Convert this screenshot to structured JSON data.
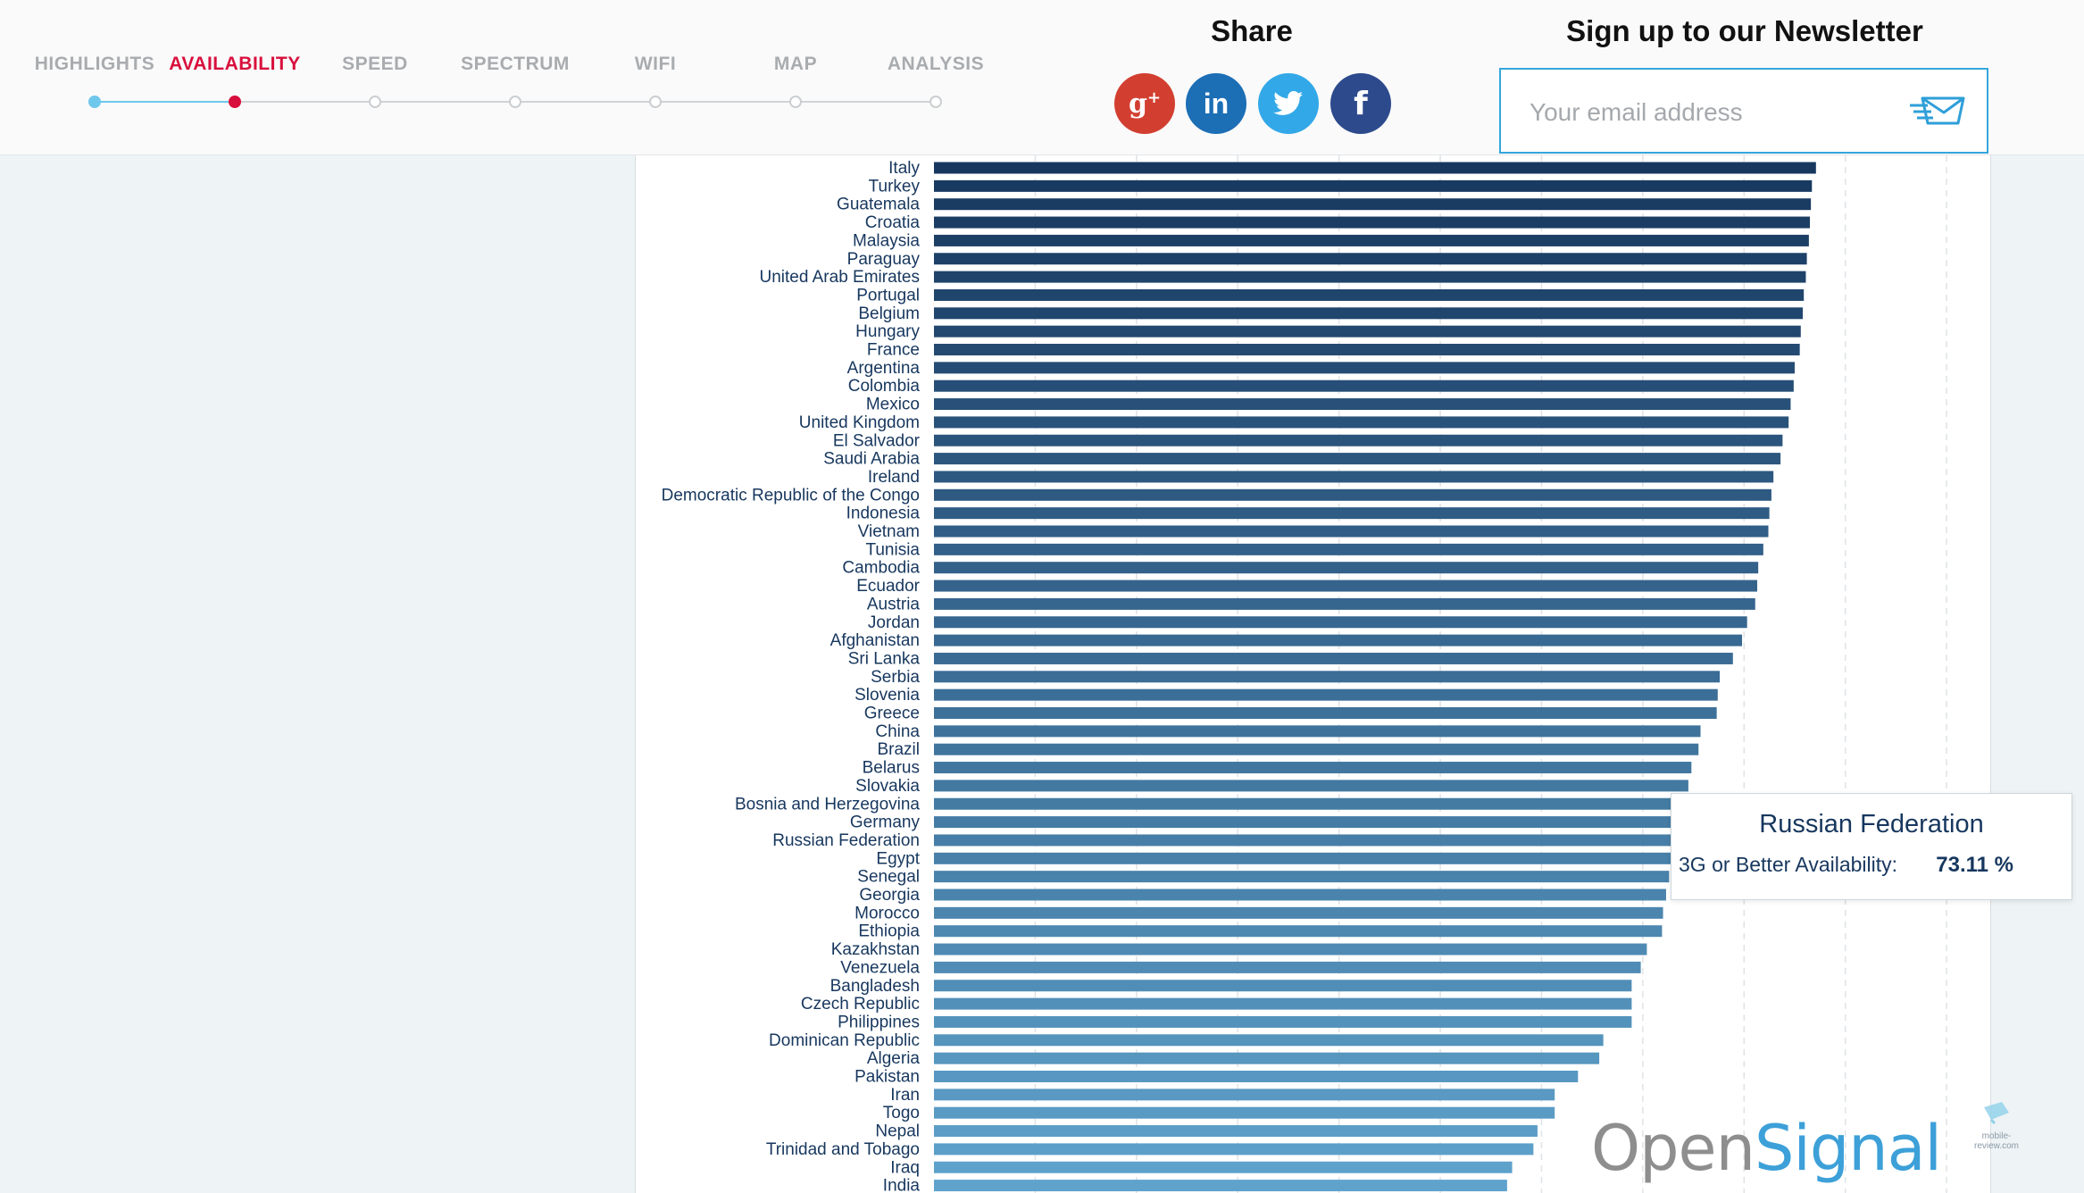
{
  "nav": {
    "items": [
      {
        "label": "HIGHLIGHTS",
        "state": "done"
      },
      {
        "label": "AVAILABILITY",
        "state": "current"
      },
      {
        "label": "SPEED",
        "state": "todo"
      },
      {
        "label": "SPECTRUM",
        "state": "todo"
      },
      {
        "label": "WIFI",
        "state": "todo"
      },
      {
        "label": "MAP",
        "state": "todo"
      },
      {
        "label": "ANALYSIS",
        "state": "todo"
      }
    ]
  },
  "share": {
    "title": "Share",
    "buttons": [
      {
        "name": "google-plus",
        "glyph": "g+",
        "color": "#d23f31"
      },
      {
        "name": "linkedin",
        "glyph": "in",
        "color": "#1c6eb5"
      },
      {
        "name": "twitter",
        "glyph": "bird",
        "color": "#33a8e8"
      },
      {
        "name": "facebook",
        "glyph": "f",
        "color": "#2c4a8c"
      }
    ]
  },
  "newsletter": {
    "title": "Sign up to our Newsletter",
    "placeholder": "Your email address",
    "value": ""
  },
  "tooltip": {
    "country": "Russian Federation",
    "label": "3G or Better Availability:",
    "value": "73.11 %"
  },
  "logo": {
    "part1": "Open",
    "part2": "Signal"
  },
  "watermark": "mobile-review.com",
  "colors": {
    "accent_active": "#d80f3c",
    "nav_done": "#6fc7ec",
    "bar_top": "#17375e",
    "bar_bottom": "#5fa3cd"
  },
  "chart_data": {
    "type": "bar",
    "orientation": "horizontal",
    "metric": "3G or Better Availability",
    "unit": "%",
    "xlim": [
      0,
      100
    ],
    "grid": true,
    "categories": [
      "Italy",
      "Turkey",
      "Guatemala",
      "Croatia",
      "Malaysia",
      "Paraguay",
      "United Arab Emirates",
      "Portugal",
      "Belgium",
      "Hungary",
      "France",
      "Argentina",
      "Colombia",
      "Mexico",
      "United Kingdom",
      "El Salvador",
      "Saudi Arabia",
      "Ireland",
      "Democratic Republic of the Congo",
      "Indonesia",
      "Vietnam",
      "Tunisia",
      "Cambodia",
      "Ecuador",
      "Austria",
      "Jordan",
      "Afghanistan",
      "Sri Lanka",
      "Serbia",
      "Slovenia",
      "Greece",
      "China",
      "Brazil",
      "Belarus",
      "Slovakia",
      "Bosnia and Herzegovina",
      "Germany",
      "Russian Federation",
      "Egypt",
      "Senegal",
      "Georgia",
      "Morocco",
      "Ethiopia",
      "Kazakhstan",
      "Venezuela",
      "Bangladesh",
      "Czech Republic",
      "Philippines",
      "Dominican Republic",
      "Algeria",
      "Pakistan",
      "Iran",
      "Togo",
      "Nepal",
      "Trinidad and Tobago",
      "Iraq",
      "India"
    ],
    "values": [
      87.1,
      86.7,
      86.6,
      86.5,
      86.4,
      86.2,
      86.1,
      85.9,
      85.8,
      85.6,
      85.5,
      85.0,
      84.9,
      84.6,
      84.4,
      83.8,
      83.6,
      82.9,
      82.7,
      82.5,
      82.4,
      81.9,
      81.4,
      81.3,
      81.1,
      80.3,
      79.8,
      78.9,
      77.6,
      77.4,
      77.3,
      75.7,
      75.5,
      74.8,
      74.5,
      73.2,
      73.2,
      73.11,
      72.8,
      72.6,
      72.3,
      72.0,
      71.9,
      70.4,
      69.8,
      68.9,
      68.9,
      68.9,
      66.1,
      65.7,
      63.6,
      61.3,
      61.3,
      59.6,
      59.2,
      57.1,
      56.6
    ]
  }
}
